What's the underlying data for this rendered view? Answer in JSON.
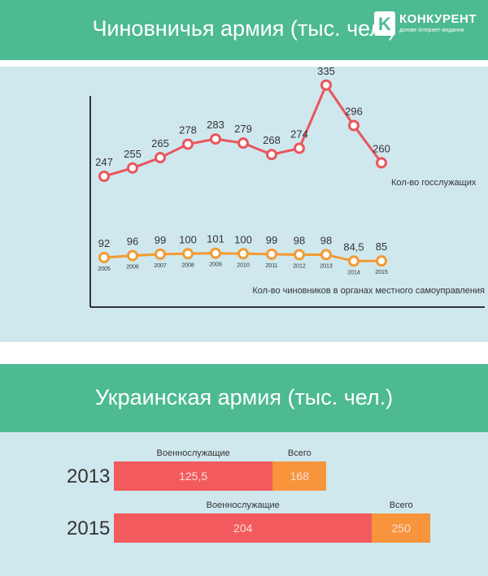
{
  "header1": {
    "title": "Чиновничья армия (тыс. чел.)"
  },
  "logo": {
    "name": "КОНКУРЕНТ",
    "tagline": "ділове інтернет-видання",
    "mark": "K"
  },
  "header2": {
    "title": "Украинская армия (тыс. чел.)"
  },
  "colors": {
    "band": "#4dba92",
    "panel": "#cfe8ee",
    "red": "#e9555c",
    "orange": "#f39a32",
    "red_bar": "#f25a5e",
    "orange_bar": "#f7943c"
  },
  "chart_data": [
    {
      "type": "line",
      "title": "Чиновничья армия (тыс. чел.)",
      "x": [
        "2005",
        "2006",
        "2007",
        "2008",
        "2009",
        "2010",
        "2011",
        "2012",
        "2013",
        "2014",
        "2015"
      ],
      "series": [
        {
          "name": "Кол-во госслужащих",
          "values": [
            247,
            255,
            265,
            278,
            283,
            279,
            268,
            274,
            335,
            296,
            260
          ],
          "labels": [
            "247",
            "255",
            "265",
            "278",
            "283",
            "279",
            "268",
            "274",
            "335",
            "296",
            "260"
          ],
          "color": "#e9555c"
        },
        {
          "name": "Кол-во чиновников в органах местного самоуправления",
          "values": [
            92,
            96,
            99,
            100,
            101,
            100,
            99,
            98,
            98,
            84.5,
            85
          ],
          "labels": [
            "92",
            "96",
            "99",
            "100",
            "101",
            "100",
            "99",
            "98",
            "98",
            "84,5",
            "85"
          ],
          "color": "#f39a32"
        }
      ],
      "grid": false,
      "legend": "inline labels right of lines"
    },
    {
      "type": "bar",
      "title": "Украинская армия (тыс. чел.)",
      "orientation": "horizontal",
      "stacked": true,
      "categories": [
        "2013",
        "2015"
      ],
      "series": [
        {
          "name": "Военнослужащие",
          "values": [
            125.5,
            204
          ],
          "labels": [
            "125,5",
            "204"
          ],
          "color": "#f25a5e"
        },
        {
          "name": "Всего",
          "values": [
            168,
            250
          ],
          "labels": [
            "168",
            "250"
          ],
          "color": "#f7943c"
        }
      ]
    }
  ]
}
